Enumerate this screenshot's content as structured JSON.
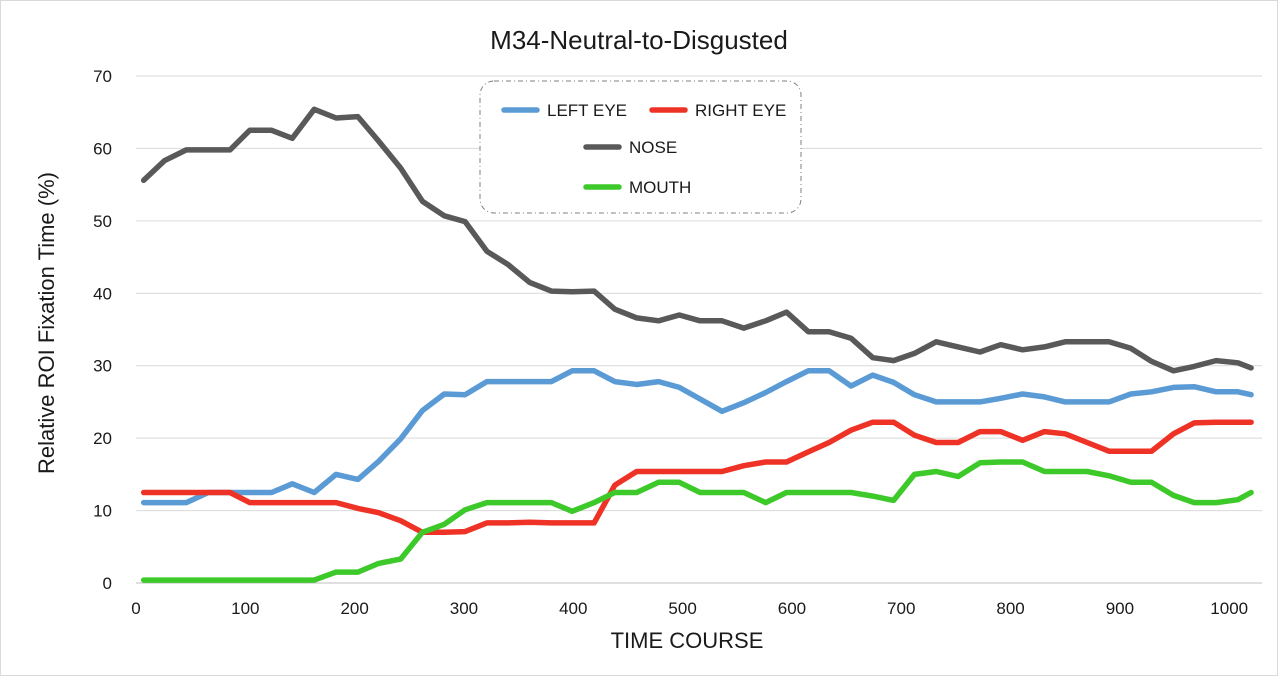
{
  "chart_data": {
    "type": "line",
    "title": "M34-Neutral-to-Disgusted",
    "xlabel": "TIME  COURSE",
    "ylabel": "Relative  ROI  Fixation  Time  (%)",
    "xlim": [
      0,
      1030
    ],
    "ylim": [
      0,
      70
    ],
    "xticks": [
      0,
      100,
      200,
      300,
      400,
      500,
      600,
      700,
      800,
      900,
      1000
    ],
    "yticks": [
      0,
      10,
      20,
      30,
      40,
      50,
      60,
      70
    ],
    "grid": true,
    "legend_position": "top-center",
    "x": [
      7,
      26,
      46,
      66,
      86,
      104,
      124,
      143,
      163,
      183,
      203,
      222,
      242,
      262,
      282,
      301,
      321,
      340,
      360,
      380,
      399,
      419,
      438,
      458,
      478,
      497,
      516,
      536,
      556,
      576,
      595,
      615,
      634,
      654,
      674,
      693,
      712,
      732,
      752,
      772,
      791,
      811,
      831,
      850,
      870,
      890,
      910,
      929,
      949,
      968,
      988,
      1008,
      1020
    ],
    "series": [
      {
        "name": "LEFT EYE",
        "color": "#5b9bd5",
        "values": [
          11.1,
          11.1,
          11.1,
          12.5,
          12.5,
          12.5,
          12.5,
          13.7,
          12.5,
          15.0,
          14.3,
          16.8,
          19.9,
          23.8,
          26.1,
          26.0,
          27.8,
          27.8,
          27.8,
          27.8,
          29.3,
          29.3,
          27.8,
          27.4,
          27.8,
          27.0,
          25.4,
          23.7,
          24.9,
          26.3,
          27.8,
          29.3,
          29.3,
          27.2,
          28.7,
          27.7,
          26.0,
          25.0,
          25.0,
          25.0,
          25.5,
          26.1,
          25.7,
          25.0,
          25.0,
          25.0,
          26.1,
          26.4,
          27.0,
          27.1,
          26.4,
          26.4,
          26.0
        ]
      },
      {
        "name": "RIGHT EYE",
        "color": "#ee3326",
        "values": [
          12.5,
          12.5,
          12.5,
          12.5,
          12.5,
          11.1,
          11.1,
          11.1,
          11.1,
          11.1,
          10.3,
          9.7,
          8.6,
          7.0,
          7.0,
          7.1,
          8.3,
          8.3,
          8.4,
          8.3,
          8.3,
          8.3,
          13.5,
          15.4,
          15.4,
          15.4,
          15.4,
          15.4,
          16.2,
          16.7,
          16.7,
          18.1,
          19.4,
          21.1,
          22.2,
          22.2,
          20.4,
          19.4,
          19.4,
          20.9,
          20.9,
          19.7,
          20.9,
          20.6,
          19.4,
          18.2,
          18.2,
          18.2,
          20.6,
          22.1,
          22.2,
          22.2,
          22.2
        ]
      },
      {
        "name": "NOSE",
        "color": "#595959",
        "values": [
          55.6,
          58.3,
          59.8,
          59.8,
          59.8,
          62.5,
          62.5,
          61.4,
          65.4,
          64.2,
          64.4,
          61.0,
          57.3,
          52.7,
          50.7,
          49.9,
          45.8,
          44.0,
          41.5,
          40.3,
          40.2,
          40.3,
          37.8,
          36.6,
          36.2,
          37.0,
          36.2,
          36.2,
          35.2,
          36.2,
          37.4,
          34.7,
          34.7,
          33.8,
          31.1,
          30.7,
          31.7,
          33.3,
          32.6,
          31.9,
          32.9,
          32.2,
          32.6,
          33.3,
          33.3,
          33.3,
          32.4,
          30.6,
          29.3,
          29.9,
          30.7,
          30.4,
          29.7
        ]
      },
      {
        "name": "MOUTH",
        "color": "#3dc92a",
        "values": [
          0.4,
          0.4,
          0.4,
          0.4,
          0.4,
          0.4,
          0.4,
          0.4,
          0.4,
          1.5,
          1.5,
          2.7,
          3.3,
          7.0,
          8.1,
          10.1,
          11.1,
          11.1,
          11.1,
          11.1,
          9.9,
          11.1,
          12.5,
          12.5,
          13.9,
          13.9,
          12.5,
          12.5,
          12.5,
          11.1,
          12.5,
          12.5,
          12.5,
          12.5,
          12.0,
          11.4,
          15.0,
          15.4,
          14.7,
          16.6,
          16.7,
          16.7,
          15.4,
          15.4,
          15.4,
          14.8,
          13.9,
          13.9,
          12.1,
          11.1,
          11.1,
          11.5,
          12.5
        ]
      }
    ],
    "legend": {
      "row1": [
        "LEFT EYE",
        "RIGHT EYE"
      ],
      "row2": [
        "NOSE"
      ],
      "row3": [
        "MOUTH"
      ]
    }
  }
}
